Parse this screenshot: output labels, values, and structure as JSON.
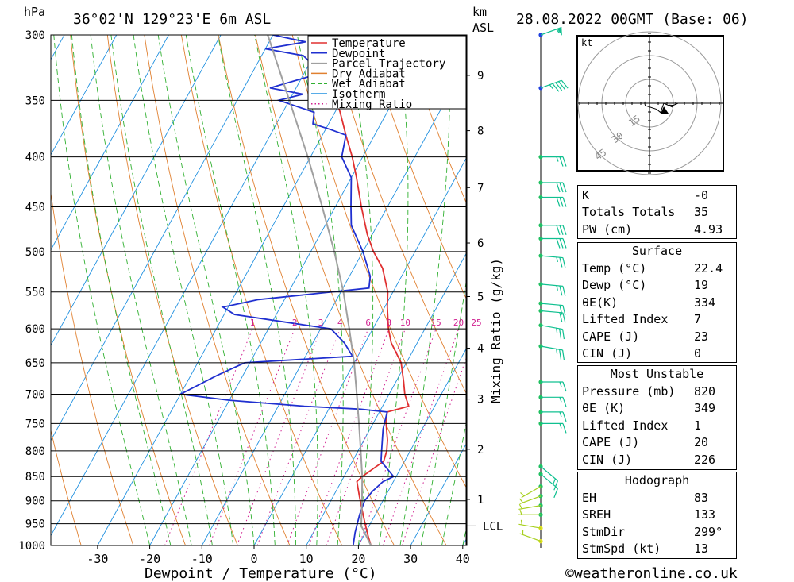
{
  "header": {
    "units_p": "hPa",
    "location": "36°02'N 129°23'E 6m ASL",
    "units_km": "km",
    "units_asl": "ASL",
    "datetime": "28.08.2022 00GMT (Base: 06)"
  },
  "chart_data": {
    "type": "line",
    "title": "",
    "xlabel": "Dewpoint / Temperature (°C)",
    "ylabel": "hPa",
    "y2label": "Mixing Ratio (g/kg)",
    "x_range": [
      -40,
      40
    ],
    "y_range": [
      1000,
      300
    ],
    "x_ticks": [
      -30,
      -20,
      -10,
      0,
      10,
      20,
      30,
      40
    ],
    "pressure_ticks": [
      300,
      350,
      400,
      450,
      500,
      550,
      600,
      650,
      700,
      750,
      800,
      850,
      900,
      950,
      1000
    ],
    "km_ticks": [
      {
        "label": "1",
        "p": 897
      },
      {
        "label": "2",
        "p": 797
      },
      {
        "label": "3",
        "p": 708
      },
      {
        "label": "4",
        "p": 628
      },
      {
        "label": "5",
        "p": 556
      },
      {
        "label": "6",
        "p": 490
      },
      {
        "label": "7",
        "p": 430
      },
      {
        "label": "8",
        "p": 376
      },
      {
        "label": "9",
        "p": 330
      }
    ],
    "lcl": {
      "label": "LCL",
      "p": 955
    },
    "mixing_ratio_labels": [
      "1",
      "2",
      "3",
      "4",
      "6",
      "8",
      "10",
      "15",
      "20",
      "25"
    ],
    "legend": {
      "placement": "top-center",
      "entries": [
        {
          "name": "Temperature",
          "color": "#e03030",
          "style": "solid"
        },
        {
          "name": "Dewpoint",
          "color": "#2030d0",
          "style": "solid"
        },
        {
          "name": "Parcel Trajectory",
          "color": "#a0a0a0",
          "style": "solid"
        },
        {
          "name": "Dry Adiabat",
          "color": "#e08030",
          "style": "solid"
        },
        {
          "name": "Wet Adiabat",
          "color": "#30b030",
          "style": "dash"
        },
        {
          "name": "Isotherm",
          "color": "#2090e0",
          "style": "solid"
        },
        {
          "name": "Mixing Ratio",
          "color": "#d02090",
          "style": "dot"
        }
      ]
    },
    "series": [
      {
        "name": "Temperature",
        "points": [
          [
            1000,
            22.4
          ],
          [
            980,
            21
          ],
          [
            950,
            19
          ],
          [
            920,
            17
          ],
          [
            890,
            15
          ],
          [
            860,
            13
          ],
          [
            850,
            13.5
          ],
          [
            820,
            16
          ],
          [
            800,
            15.5
          ],
          [
            780,
            14.5
          ],
          [
            750,
            12.5
          ],
          [
            730,
            11.5
          ],
          [
            720,
            15
          ],
          [
            700,
            13
          ],
          [
            680,
            11.5
          ],
          [
            650,
            9
          ],
          [
            620,
            5
          ],
          [
            600,
            3
          ],
          [
            570,
            0.5
          ],
          [
            550,
            -1
          ],
          [
            520,
            -4.5
          ],
          [
            500,
            -8
          ],
          [
            480,
            -11
          ],
          [
            450,
            -15
          ],
          [
            420,
            -19
          ],
          [
            400,
            -22
          ],
          [
            380,
            -25.5
          ],
          [
            360,
            -29
          ],
          [
            355,
            -30
          ]
        ]
      },
      {
        "name": "Dewpoint",
        "points": [
          [
            1000,
            19
          ],
          [
            970,
            18
          ],
          [
            950,
            17.5
          ],
          [
            930,
            17
          ],
          [
            900,
            16.5
          ],
          [
            880,
            17
          ],
          [
            860,
            18
          ],
          [
            850,
            19.5
          ],
          [
            820,
            15.5
          ],
          [
            800,
            14.5
          ],
          [
            760,
            12.5
          ],
          [
            730,
            11.5
          ],
          [
            725,
            6
          ],
          [
            720,
            -5
          ],
          [
            710,
            -20
          ],
          [
            700,
            -30
          ],
          [
            670,
            -25
          ],
          [
            650,
            -21
          ],
          [
            640,
            -1
          ],
          [
            620,
            -4
          ],
          [
            600,
            -8
          ],
          [
            590,
            -18
          ],
          [
            580,
            -28
          ],
          [
            570,
            -31
          ],
          [
            560,
            -25
          ],
          [
            545,
            -5
          ],
          [
            530,
            -6
          ],
          [
            500,
            -10
          ],
          [
            470,
            -15
          ],
          [
            450,
            -17
          ],
          [
            420,
            -20
          ],
          [
            400,
            -24
          ],
          [
            380,
            -25.5
          ],
          [
            375,
            -29
          ],
          [
            370,
            -33
          ],
          [
            360,
            -34
          ],
          [
            350,
            -42
          ],
          [
            345,
            -38
          ],
          [
            340,
            -45
          ],
          [
            330,
            -38
          ],
          [
            320,
            -40
          ],
          [
            315,
            -42
          ],
          [
            310,
            -50
          ],
          [
            305,
            -43
          ],
          [
            300,
            -50
          ]
        ]
      },
      {
        "name": "Parcel Trajectory",
        "points": [
          [
            1000,
            22.4
          ],
          [
            955,
            18.5
          ],
          [
            900,
            16
          ],
          [
            850,
            13.5
          ],
          [
            800,
            10.5
          ],
          [
            750,
            7.3
          ],
          [
            700,
            3.8
          ],
          [
            650,
            0
          ],
          [
            600,
            -4.5
          ],
          [
            550,
            -9.5
          ],
          [
            500,
            -15.5
          ],
          [
            450,
            -22.5
          ],
          [
            400,
            -30.5
          ],
          [
            350,
            -40
          ],
          [
            300,
            -51
          ]
        ]
      }
    ],
    "hodograph_rings": [
      "15",
      "30",
      "45"
    ],
    "hodograph_unit": "kt"
  },
  "wind_profile": [
    {
      "p": 300,
      "dir": 250,
      "spd": 55
    },
    {
      "p": 340,
      "dir": 250,
      "spd": 45
    },
    {
      "p": 400,
      "dir": 270,
      "spd": 25
    },
    {
      "p": 425,
      "dir": 270,
      "spd": 30
    },
    {
      "p": 440,
      "dir": 270,
      "spd": 30
    },
    {
      "p": 470,
      "dir": 270,
      "spd": 30
    },
    {
      "p": 485,
      "dir": 270,
      "spd": 30
    },
    {
      "p": 505,
      "dir": 275,
      "spd": 25
    },
    {
      "p": 540,
      "dir": 275,
      "spd": 25
    },
    {
      "p": 565,
      "dir": 275,
      "spd": 20
    },
    {
      "p": 575,
      "dir": 275,
      "spd": 20
    },
    {
      "p": 595,
      "dir": 280,
      "spd": 25
    },
    {
      "p": 625,
      "dir": 280,
      "spd": 25
    },
    {
      "p": 680,
      "dir": 270,
      "spd": 15
    },
    {
      "p": 705,
      "dir": 270,
      "spd": 15
    },
    {
      "p": 730,
      "dir": 270,
      "spd": 15
    },
    {
      "p": 750,
      "dir": 270,
      "spd": 15
    },
    {
      "p": 830,
      "dir": 310,
      "spd": 15
    },
    {
      "p": 845,
      "dir": 310,
      "spd": 10
    },
    {
      "p": 870,
      "dir": 60,
      "spd": 5
    },
    {
      "p": 890,
      "dir": 70,
      "spd": 5
    },
    {
      "p": 910,
      "dir": 80,
      "spd": 5
    },
    {
      "p": 930,
      "dir": 90,
      "spd": 5
    },
    {
      "p": 960,
      "dir": 100,
      "spd": 5
    },
    {
      "p": 990,
      "dir": 110,
      "spd": 5
    }
  ],
  "indices": {
    "rows": [
      {
        "label": "K",
        "value": "-0"
      },
      {
        "label": "Totals Totals",
        "value": "35"
      },
      {
        "label": "PW (cm)",
        "value": "4.93"
      }
    ]
  },
  "surface": {
    "title": "Surface",
    "rows": [
      {
        "label": "Temp (°C)",
        "value": "22.4"
      },
      {
        "label": "Dewp (°C)",
        "value": "19"
      },
      {
        "label": "θE(K)",
        "value": "334"
      },
      {
        "label": "Lifted Index",
        "value": "7"
      },
      {
        "label": "CAPE (J)",
        "value": "23"
      },
      {
        "label": "CIN (J)",
        "value": "0"
      }
    ]
  },
  "most_unstable": {
    "title": "Most Unstable",
    "rows": [
      {
        "label": "Pressure (mb)",
        "value": "820"
      },
      {
        "label": "θE (K)",
        "value": "349"
      },
      {
        "label": "Lifted Index",
        "value": "1"
      },
      {
        "label": "CAPE (J)",
        "value": "20"
      },
      {
        "label": "CIN (J)",
        "value": "226"
      }
    ]
  },
  "hodograph_stats": {
    "title": "Hodograph",
    "rows": [
      {
        "label": "EH",
        "value": "83"
      },
      {
        "label": "SREH",
        "value": "133"
      },
      {
        "label": "StmDir",
        "value": "299°"
      },
      {
        "label": "StmSpd (kt)",
        "value": "13"
      }
    ]
  },
  "footer": {
    "credit": "©weatheronline.co.uk"
  },
  "colors": {
    "temperature": "#e03030",
    "dewpoint": "#2030d0",
    "parcel": "#a0a0a0",
    "dry_adiabat": "#e08030",
    "wet_adiabat": "#30b030",
    "isotherm": "#2090e0",
    "mixing_ratio": "#d02090"
  }
}
